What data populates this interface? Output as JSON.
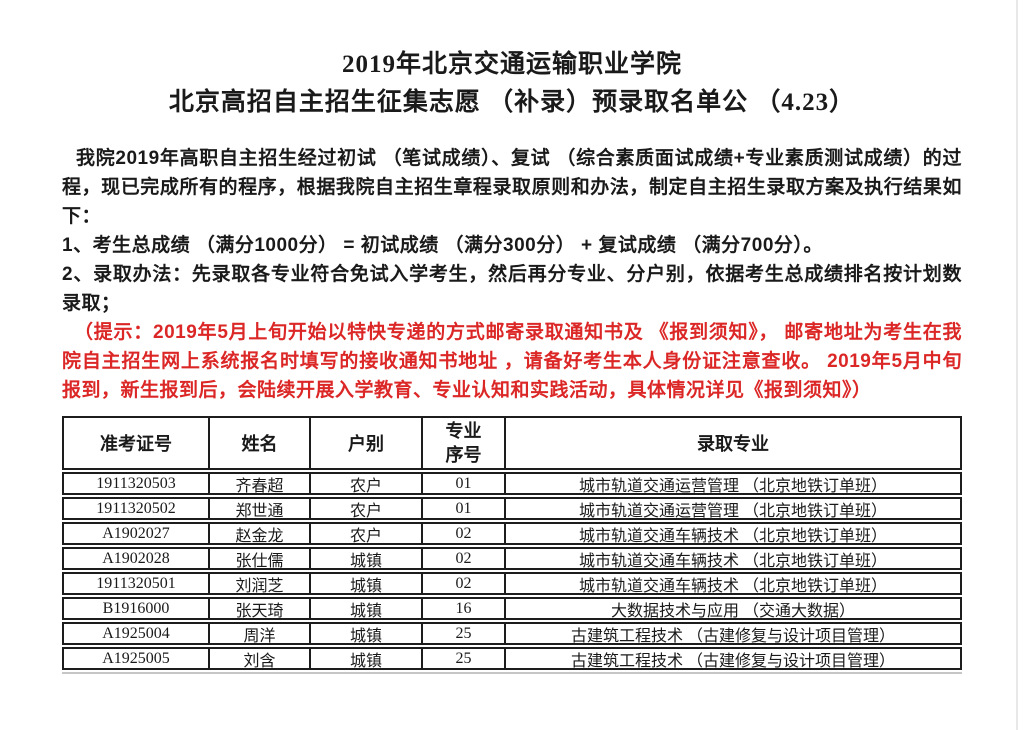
{
  "title": {
    "line1": "2019年北京交通运输职业学院",
    "line2": "北京高招自主招生征集志愿 （补录）预录取名单公 （4.23）"
  },
  "intro": {
    "paragraph": "我院2019年高职自主招生经过初试 （笔试成绩）、复试 （综合素质面试成绩+专业素质测试成绩）的过程，现已完成所有的程序，根据我院自主招生章程录取原则和办法，制定自主招生录取方案及执行结果如下：",
    "item1": "1、考生总成绩 （满分1000分） = 初试成绩 （满分300分） + 复试成绩 （满分700分）。",
    "item2": "2、录取办法：先录取各专业符合免试入学考生，然后再分专业、分户别，依据考生总成绩排名按计划数录取；",
    "notice": "（提示：2019年5月上旬开始以特快专递的方式邮寄录取通知书及 《报到须知》， 邮寄地址为考生在我院自主招生网上系统报名时填写的接收通知书地址 ，请备好考生本人身份证注意查收。 2019年5月中旬报到，新生报到后，会陆续开展入学教育、专业认知和实践活动，具体情况详见《报到须知》）"
  },
  "colors": {
    "text": "#1a1a1a",
    "notice_red": "#dc2727",
    "table_border": "#1d1d1d"
  },
  "table": {
    "headers": [
      "准考证号",
      "姓名",
      "户别",
      "专业序号",
      "录取专业"
    ],
    "rows": [
      [
        "1911320503",
        "齐春超",
        "农户",
        "01",
        "城市轨道交通运营管理 （北京地铁订单班）"
      ],
      [
        "1911320502",
        "郑世通",
        "农户",
        "01",
        "城市轨道交通运营管理 （北京地铁订单班）"
      ],
      [
        "A1902027",
        "赵金龙",
        "农户",
        "02",
        "城市轨道交通车辆技术 （北京地铁订单班）"
      ],
      [
        "A1902028",
        "张仕儒",
        "城镇",
        "02",
        "城市轨道交通车辆技术 （北京地铁订单班）"
      ],
      [
        "1911320501",
        "刘润芝",
        "城镇",
        "02",
        "城市轨道交通车辆技术 （北京地铁订单班）"
      ],
      [
        "B1916000",
        "张天琦",
        "城镇",
        "16",
        "大数据技术与应用 （交通大数据）"
      ],
      [
        "A1925004",
        "周洋",
        "城镇",
        "25",
        "古建筑工程技术 （古建修复与设计项目管理）"
      ],
      [
        "A1925005",
        "刘含",
        "城镇",
        "25",
        "古建筑工程技术 （古建修复与设计项目管理）"
      ]
    ]
  }
}
